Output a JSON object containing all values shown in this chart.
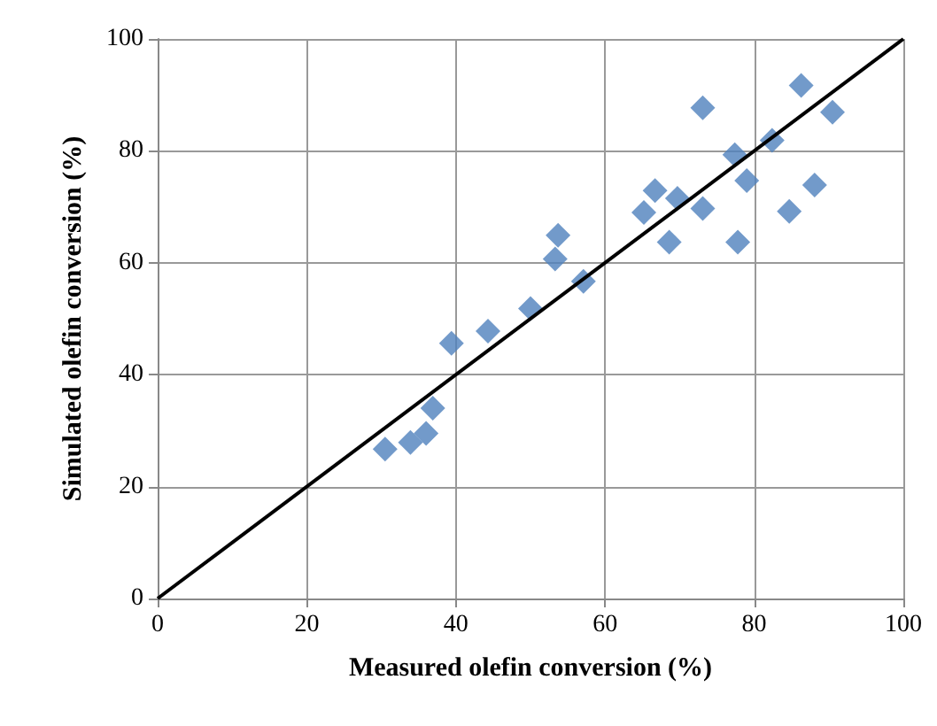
{
  "chart_data": {
    "type": "scatter",
    "xlabel": "Measured olefin conversion (%)",
    "ylabel": "Simulated olefin conversion (%)",
    "xlim": [
      0,
      100
    ],
    "ylim": [
      0,
      100
    ],
    "xticks": [
      0,
      20,
      40,
      60,
      80,
      100
    ],
    "yticks": [
      0,
      20,
      40,
      60,
      80,
      100
    ],
    "grid": true,
    "series": [
      {
        "color": "#4f81bd",
        "marker": "diamond",
        "x": [
          30.5,
          33.9,
          36.0,
          36.9,
          39.4,
          44.3,
          50.0,
          57.1,
          73.1,
          86.3,
          90.5,
          82.4,
          77.4,
          79.0,
          88.1,
          66.7,
          69.7,
          65.2,
          73.1,
          84.7,
          68.6,
          77.8,
          53.7,
          53.3
        ],
        "values": [
          26.7,
          27.9,
          29.5,
          34.0,
          45.6,
          47.8,
          51.8,
          56.7,
          87.7,
          91.7,
          86.9,
          81.9,
          79.3,
          74.7,
          73.9,
          72.9,
          71.5,
          69.0,
          69.7,
          69.2,
          63.7,
          63.7,
          64.9,
          60.7
        ]
      },
      {
        "type": "line",
        "color": "#000000",
        "marker": "none",
        "line_style": "solid",
        "x": [
          0,
          100
        ],
        "values": [
          0,
          100
        ]
      }
    ]
  }
}
